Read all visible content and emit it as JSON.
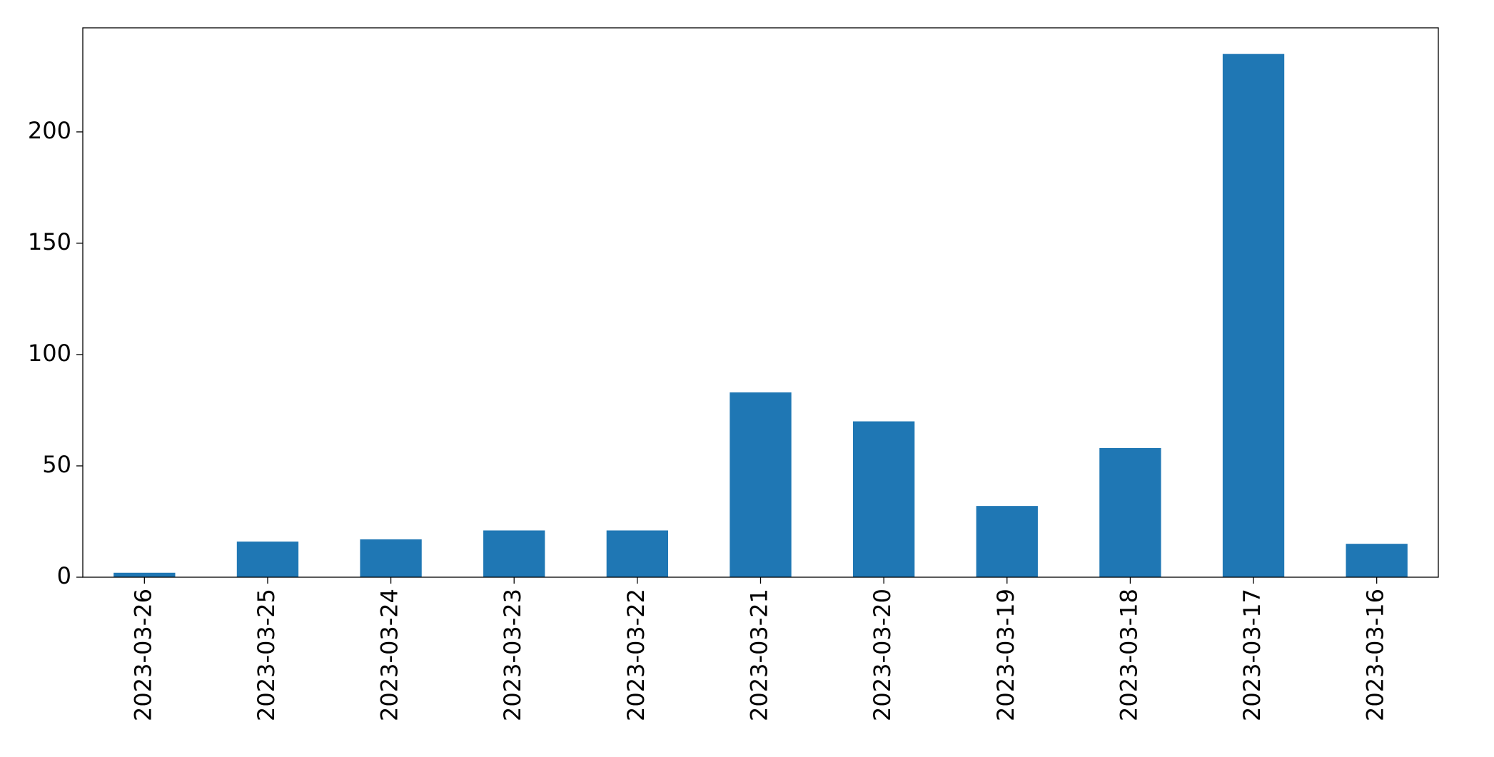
{
  "chart_data": {
    "type": "bar",
    "categories": [
      "2023-03-26",
      "2023-03-25",
      "2023-03-24",
      "2023-03-23",
      "2023-03-22",
      "2023-03-21",
      "2023-03-20",
      "2023-03-19",
      "2023-03-18",
      "2023-03-17",
      "2023-03-16"
    ],
    "values": [
      2,
      16,
      17,
      21,
      21,
      83,
      70,
      32,
      58,
      235,
      15
    ],
    "color": "#1f77b4",
    "ylim": [
      0,
      246.75
    ],
    "yticks": [
      0,
      50,
      100,
      150,
      200
    ],
    "grid": false
  }
}
